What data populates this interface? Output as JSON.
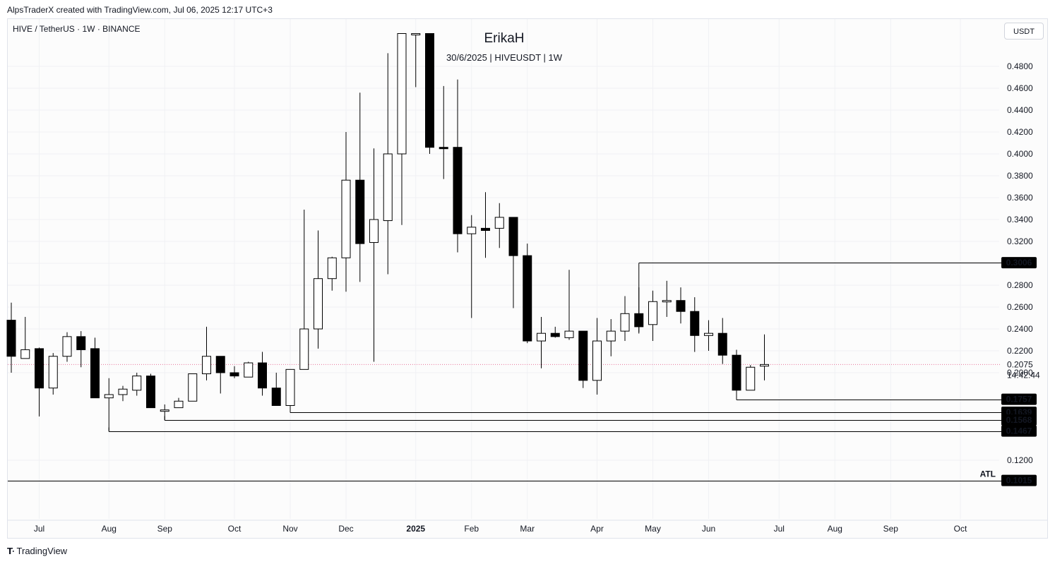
{
  "attribution": "AlpsTraderX created with TradingView.com, Jul 06, 2025 12:17 UTC+3",
  "symbol_line": "HIVE / TetherUS · 1W · BINANCE",
  "watermark": {
    "title": "ErikaH",
    "subtitle": "30/6/2025 | HIVEUSDT | 1W"
  },
  "currency_button": "USDT",
  "countdown": "14:42:44",
  "logo_text": "TradingView",
  "colors": {
    "up_fill": "#ffffff",
    "down_fill": "#000000",
    "wick": "#000000",
    "price_line": "#e8739a",
    "label_bg": "#000000"
  },
  "chart_data": {
    "type": "candlestick",
    "title": "HIVE / TetherUS · 1W · BINANCE",
    "ylim": [
      0.08,
      0.51
    ],
    "y_ticks": [
      0.12,
      0.2,
      0.22,
      0.24,
      0.26,
      0.28,
      0.3,
      0.32,
      0.34,
      0.36,
      0.38,
      0.4,
      0.42,
      0.44,
      0.46,
      0.48
    ],
    "x_ticks": [
      {
        "label": "Jul",
        "i": 2,
        "bold": false
      },
      {
        "label": "Aug",
        "i": 7,
        "bold": false
      },
      {
        "label": "Sep",
        "i": 11,
        "bold": false
      },
      {
        "label": "Oct",
        "i": 16,
        "bold": false
      },
      {
        "label": "Nov",
        "i": 20,
        "bold": false
      },
      {
        "label": "Dec",
        "i": 24,
        "bold": false
      },
      {
        "label": "2025",
        "i": 29,
        "bold": true
      },
      {
        "label": "Feb",
        "i": 33,
        "bold": false
      },
      {
        "label": "Mar",
        "i": 37,
        "bold": false
      },
      {
        "label": "Apr",
        "i": 42,
        "bold": false
      },
      {
        "label": "May",
        "i": 46,
        "bold": false
      },
      {
        "label": "Jun",
        "i": 50,
        "bold": false
      },
      {
        "label": "Jul",
        "i": 55,
        "bold": false
      },
      {
        "label": "Aug",
        "i": 59,
        "bold": false
      },
      {
        "label": "Sep",
        "i": 63,
        "bold": false
      },
      {
        "label": "Oct",
        "i": 68,
        "bold": false
      }
    ],
    "candles": [
      {
        "o": 0.248,
        "h": 0.264,
        "l": 0.2,
        "c": 0.215
      },
      {
        "o": 0.213,
        "h": 0.251,
        "l": 0.213,
        "c": 0.221
      },
      {
        "o": 0.222,
        "h": 0.223,
        "l": 0.16,
        "c": 0.186
      },
      {
        "o": 0.186,
        "h": 0.218,
        "l": 0.18,
        "c": 0.215
      },
      {
        "o": 0.215,
        "h": 0.237,
        "l": 0.21,
        "c": 0.233
      },
      {
        "o": 0.233,
        "h": 0.238,
        "l": 0.205,
        "c": 0.221
      },
      {
        "o": 0.222,
        "h": 0.232,
        "l": 0.177,
        "c": 0.177
      },
      {
        "o": 0.177,
        "h": 0.195,
        "l": 0.1467,
        "c": 0.18
      },
      {
        "o": 0.18,
        "h": 0.188,
        "l": 0.174,
        "c": 0.185
      },
      {
        "o": 0.184,
        "h": 0.2,
        "l": 0.179,
        "c": 0.197
      },
      {
        "o": 0.197,
        "h": 0.199,
        "l": 0.168,
        "c": 0.168
      },
      {
        "o": 0.166,
        "h": 0.171,
        "l": 0.1568,
        "c": 0.166
      },
      {
        "o": 0.168,
        "h": 0.177,
        "l": 0.168,
        "c": 0.174
      },
      {
        "o": 0.174,
        "h": 0.199,
        "l": 0.174,
        "c": 0.199
      },
      {
        "o": 0.199,
        "h": 0.242,
        "l": 0.193,
        "c": 0.215
      },
      {
        "o": 0.215,
        "h": 0.214,
        "l": 0.181,
        "c": 0.2
      },
      {
        "o": 0.2,
        "h": 0.206,
        "l": 0.195,
        "c": 0.197
      },
      {
        "o": 0.196,
        "h": 0.21,
        "l": 0.196,
        "c": 0.209
      },
      {
        "o": 0.209,
        "h": 0.219,
        "l": 0.179,
        "c": 0.186
      },
      {
        "o": 0.186,
        "h": 0.2,
        "l": 0.17,
        "c": 0.17
      },
      {
        "o": 0.17,
        "h": 0.203,
        "l": 0.1639,
        "c": 0.203
      },
      {
        "o": 0.203,
        "h": 0.349,
        "l": 0.203,
        "c": 0.24
      },
      {
        "o": 0.24,
        "h": 0.33,
        "l": 0.222,
        "c": 0.286
      },
      {
        "o": 0.286,
        "h": 0.306,
        "l": 0.275,
        "c": 0.305
      },
      {
        "o": 0.305,
        "h": 0.42,
        "l": 0.274,
        "c": 0.376
      },
      {
        "o": 0.376,
        "h": 0.456,
        "l": 0.283,
        "c": 0.318
      },
      {
        "o": 0.319,
        "h": 0.405,
        "l": 0.21,
        "c": 0.34
      },
      {
        "o": 0.339,
        "h": 0.492,
        "l": 0.29,
        "c": 0.4
      },
      {
        "o": 0.4,
        "h": 0.51,
        "l": 0.335,
        "c": 0.51
      },
      {
        "o": 0.51,
        "h": 0.51,
        "l": 0.461,
        "c": 0.51
      },
      {
        "o": 0.51,
        "h": 0.51,
        "l": 0.4,
        "c": 0.406
      },
      {
        "o": 0.406,
        "h": 0.462,
        "l": 0.377,
        "c": 0.405
      },
      {
        "o": 0.406,
        "h": 0.468,
        "l": 0.31,
        "c": 0.327
      },
      {
        "o": 0.327,
        "h": 0.344,
        "l": 0.25,
        "c": 0.333
      },
      {
        "o": 0.332,
        "h": 0.365,
        "l": 0.305,
        "c": 0.33
      },
      {
        "o": 0.332,
        "h": 0.355,
        "l": 0.314,
        "c": 0.342
      },
      {
        "o": 0.342,
        "h": 0.341,
        "l": 0.259,
        "c": 0.307
      },
      {
        "o": 0.307,
        "h": 0.318,
        "l": 0.227,
        "c": 0.229
      },
      {
        "o": 0.229,
        "h": 0.251,
        "l": 0.204,
        "c": 0.236
      },
      {
        "o": 0.236,
        "h": 0.242,
        "l": 0.232,
        "c": 0.233
      },
      {
        "o": 0.232,
        "h": 0.294,
        "l": 0.23,
        "c": 0.238
      },
      {
        "o": 0.238,
        "h": 0.235,
        "l": 0.186,
        "c": 0.193
      },
      {
        "o": 0.193,
        "h": 0.25,
        "l": 0.18,
        "c": 0.229
      },
      {
        "o": 0.229,
        "h": 0.249,
        "l": 0.215,
        "c": 0.238
      },
      {
        "o": 0.238,
        "h": 0.27,
        "l": 0.229,
        "c": 0.254
      },
      {
        "o": 0.254,
        "h": 0.278,
        "l": 0.237,
        "c": 0.242
      },
      {
        "o": 0.244,
        "h": 0.275,
        "l": 0.229,
        "c": 0.265
      },
      {
        "o": 0.265,
        "h": 0.284,
        "l": 0.251,
        "c": 0.266
      },
      {
        "o": 0.266,
        "h": 0.278,
        "l": 0.245,
        "c": 0.256
      },
      {
        "o": 0.256,
        "h": 0.269,
        "l": 0.219,
        "c": 0.234
      },
      {
        "o": 0.234,
        "h": 0.248,
        "l": 0.22,
        "c": 0.236
      },
      {
        "o": 0.236,
        "h": 0.25,
        "l": 0.208,
        "c": 0.216
      },
      {
        "o": 0.216,
        "h": 0.221,
        "l": 0.1757,
        "c": 0.184
      },
      {
        "o": 0.184,
        "h": 0.207,
        "l": 0.184,
        "c": 0.205
      },
      {
        "o": 0.206,
        "h": 0.235,
        "l": 0.193,
        "c": 0.2075
      }
    ],
    "last_price": 0.2075,
    "levels": [
      {
        "value": 0.3006,
        "label": "0.3006",
        "from_i": 45
      },
      {
        "value": 0.1757,
        "label": "0.1757",
        "from_i": 52
      },
      {
        "value": 0.1639,
        "label": "0.1639",
        "from_i": 20
      },
      {
        "value": 0.1568,
        "label": "0.1568",
        "from_i": 11
      },
      {
        "value": 0.1467,
        "label": "0.1467",
        "from_i": 7
      },
      {
        "value": 0.1015,
        "label": "0.1015",
        "from_i": 0,
        "note": "ATL"
      }
    ]
  }
}
